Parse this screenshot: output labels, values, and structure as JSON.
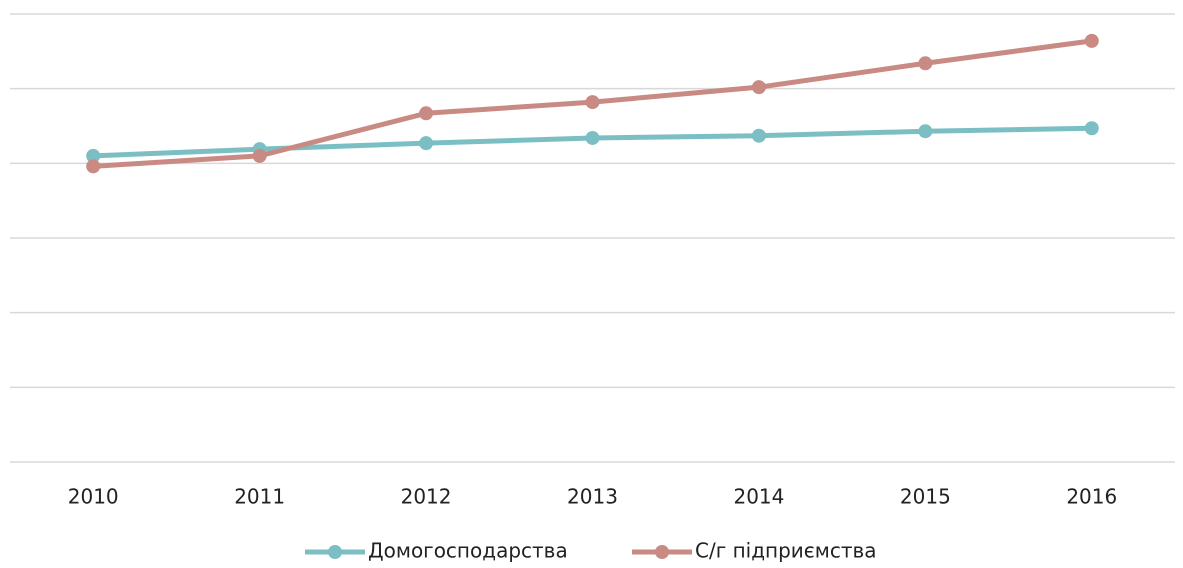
{
  "chart_data": {
    "type": "line",
    "categories": [
      "2010",
      "2011",
      "2012",
      "2013",
      "2014",
      "2015",
      "2016"
    ],
    "series": [
      {
        "name": "Домогосподарства",
        "color": "#7bbfc4",
        "values": [
          4.1,
          4.19,
          4.27,
          4.34,
          4.37,
          4.43,
          4.47
        ]
      },
      {
        "name": "С/г підприємства",
        "color": "#c98a83",
        "values": [
          3.96,
          4.1,
          4.67,
          4.82,
          5.02,
          5.34,
          5.64
        ]
      }
    ],
    "ylim": [
      0,
      6
    ],
    "yticks": [
      0,
      1,
      2,
      3,
      4,
      5,
      6
    ],
    "grid": true,
    "legend": "bottom"
  }
}
